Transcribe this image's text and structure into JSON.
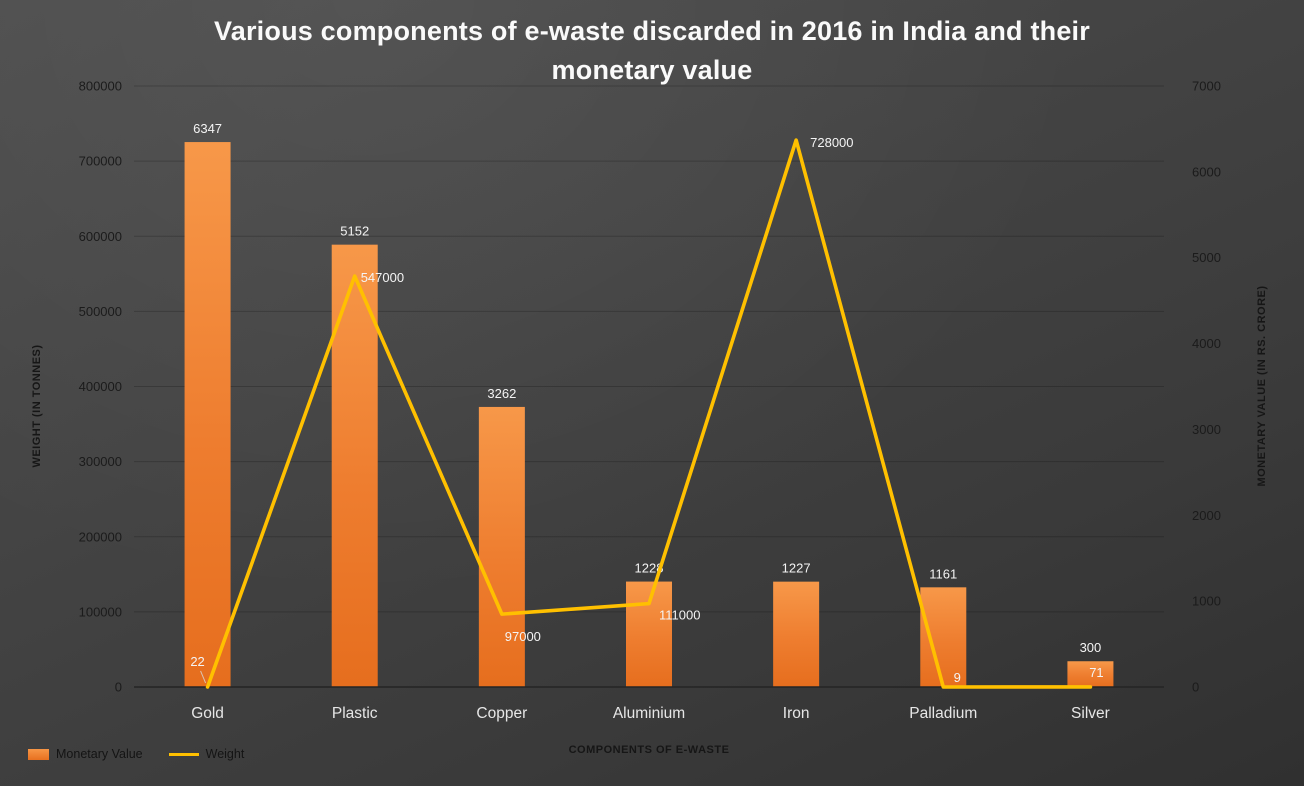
{
  "title": {
    "full": "Various components of e-waste discarded in 2016 in India and their monetary value",
    "line1": "Various components of e-waste discarded in 2016 in India and their",
    "line2": "monetary value"
  },
  "chart_data": {
    "type": "combo-bar-line",
    "categories": [
      "Gold",
      "Plastic",
      "Copper",
      "Aluminium",
      "Iron",
      "Palladium",
      "Silver"
    ],
    "series": [
      {
        "name": "Monetary Value",
        "type": "bar",
        "axis": "right",
        "color": "#ED7D31",
        "values": [
          6347,
          5152,
          3262,
          1228,
          1227,
          1161,
          300
        ]
      },
      {
        "name": "Weight",
        "type": "line",
        "axis": "left",
        "color": "#FFC000",
        "values": [
          22,
          547000,
          97000,
          111000,
          728000,
          9,
          71
        ]
      }
    ],
    "left_axis": {
      "label": "WEIGHT (IN TONNES)",
      "min": 0,
      "max": 800000,
      "step": 100000,
      "ticks": [
        0,
        100000,
        200000,
        300000,
        400000,
        500000,
        600000,
        700000,
        800000
      ]
    },
    "right_axis": {
      "label": "MONETARY VALUE (IN RS. CRORE)",
      "min": 0,
      "max": 7000,
      "step": 1000,
      "ticks": [
        0,
        1000,
        2000,
        3000,
        4000,
        5000,
        6000,
        7000
      ]
    },
    "xlabel": "COMPONENTS OF E-WASTE",
    "legend": [
      {
        "label": "Monetary Value",
        "swatch": "bar",
        "color": "#ED7D31"
      },
      {
        "label": "Weight",
        "swatch": "line",
        "color": "#FFC000"
      }
    ],
    "grid": "horizontal",
    "legend_position": "bottom-left",
    "background": "dark-gray-gradient"
  }
}
